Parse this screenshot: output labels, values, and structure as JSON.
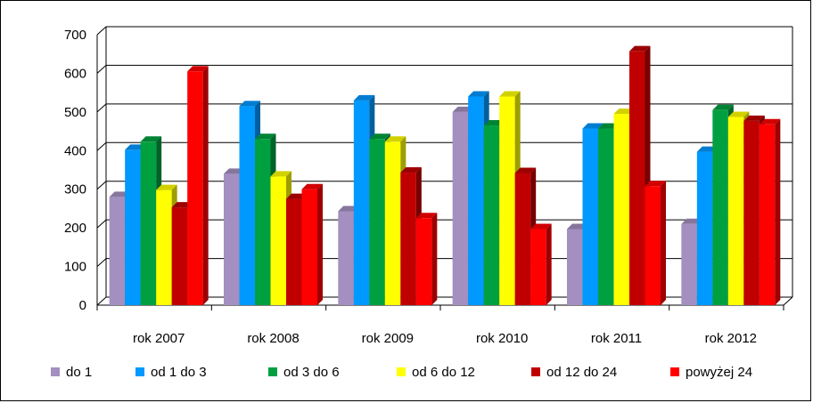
{
  "chart_data": {
    "type": "bar",
    "title": "",
    "xlabel": "",
    "ylabel": "",
    "categories": [
      "rok 2007",
      "rok 2008",
      "rok 2009",
      "rok 2010",
      "rok 2011",
      "rok 2012"
    ],
    "ylim": [
      0,
      700
    ],
    "yticks": [
      "0",
      "100",
      "200",
      "300",
      "400",
      "500",
      "600",
      "700"
    ],
    "grid": true,
    "legend": "bottom",
    "series": [
      {
        "name": "do 1",
        "color": "#a38fc0",
        "values": [
          280,
          340,
          243,
          500,
          197,
          210
        ]
      },
      {
        "name": "od 1 do 3",
        "color": "#0099ff",
        "values": [
          402,
          515,
          530,
          540,
          457,
          397
        ]
      },
      {
        "name": "od 3 do 6",
        "color": "#00a040",
        "values": [
          423,
          430,
          430,
          465,
          457,
          505
        ]
      },
      {
        "name": "od 6 do 12",
        "color": "#ffff00",
        "values": [
          298,
          333,
          423,
          540,
          495,
          487
        ]
      },
      {
        "name": "od 12 do 24",
        "color": "#c00000",
        "values": [
          253,
          275,
          343,
          342,
          657,
          477
        ]
      },
      {
        "name": "powyżej 24",
        "color": "#ff0000",
        "values": [
          605,
          300,
          225,
          197,
          308,
          468
        ]
      }
    ]
  }
}
